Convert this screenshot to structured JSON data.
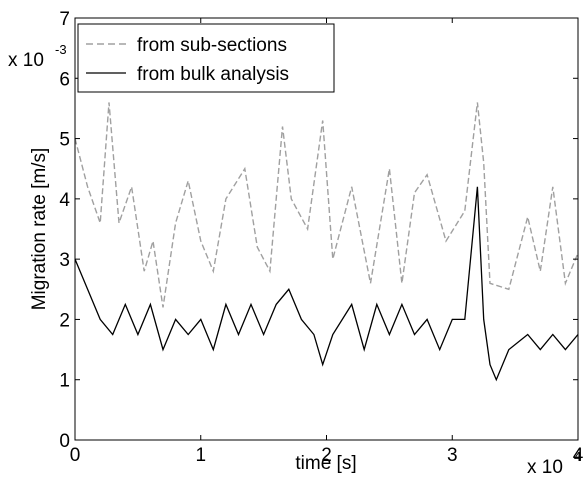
{
  "chart_data": {
    "type": "line",
    "xlabel": "time [s]",
    "ylabel": "Migration rate [m/s]",
    "x_multiplier": {
      "base": "x 10",
      "exp": "4"
    },
    "y_multiplier": {
      "base": "x 10",
      "exp": "-3"
    },
    "xlim": [
      0,
      4
    ],
    "ylim": [
      0,
      7
    ],
    "x_ticks": [
      "0",
      "1",
      "2",
      "3",
      "4"
    ],
    "y_ticks": [
      "0",
      "1",
      "2",
      "3",
      "4",
      "5",
      "6",
      "7"
    ],
    "grid": false,
    "legend_position": "top-left",
    "series": [
      {
        "name": "from sub-sections",
        "color": "#a0a0a0",
        "style": "dashed",
        "x": [
          0,
          0.1,
          0.2,
          0.27,
          0.35,
          0.45,
          0.55,
          0.62,
          0.7,
          0.8,
          0.9,
          1.0,
          1.1,
          1.2,
          1.35,
          1.45,
          1.55,
          1.65,
          1.72,
          1.85,
          1.97,
          2.05,
          2.2,
          2.35,
          2.5,
          2.6,
          2.7,
          2.8,
          2.95,
          3.1,
          3.2,
          3.25,
          3.3,
          3.45,
          3.6,
          3.7,
          3.8,
          3.9,
          4.0
        ],
        "values": [
          5.0,
          4.2,
          3.6,
          5.6,
          3.6,
          4.2,
          2.8,
          3.3,
          2.2,
          3.6,
          4.3,
          3.3,
          2.8,
          4.0,
          4.5,
          3.2,
          2.8,
          5.2,
          4.0,
          3.5,
          5.3,
          3.0,
          4.2,
          2.6,
          4.5,
          2.6,
          4.1,
          4.4,
          3.3,
          3.8,
          5.6,
          4.6,
          2.6,
          2.5,
          3.7,
          2.8,
          4.2,
          2.6,
          3.1
        ]
      },
      {
        "name": "from bulk analysis",
        "color": "#000000",
        "style": "solid",
        "x": [
          0,
          0.1,
          0.2,
          0.3,
          0.4,
          0.5,
          0.6,
          0.7,
          0.8,
          0.9,
          1.0,
          1.1,
          1.2,
          1.3,
          1.4,
          1.5,
          1.6,
          1.7,
          1.8,
          1.9,
          1.97,
          2.05,
          2.2,
          2.3,
          2.4,
          2.5,
          2.6,
          2.7,
          2.8,
          2.9,
          3.0,
          3.1,
          3.2,
          3.25,
          3.3,
          3.35,
          3.45,
          3.6,
          3.7,
          3.8,
          3.9,
          4.0
        ],
        "values": [
          3.0,
          2.5,
          2.0,
          1.75,
          2.25,
          1.75,
          2.25,
          1.5,
          2.0,
          1.75,
          2.0,
          1.5,
          2.25,
          1.75,
          2.25,
          1.75,
          2.25,
          2.5,
          2.0,
          1.75,
          1.25,
          1.75,
          2.25,
          1.5,
          2.25,
          1.75,
          2.25,
          1.75,
          2.0,
          1.5,
          2.0,
          2.0,
          4.2,
          2.0,
          1.25,
          1.0,
          1.5,
          1.75,
          1.5,
          1.75,
          1.5,
          1.75
        ]
      }
    ]
  }
}
